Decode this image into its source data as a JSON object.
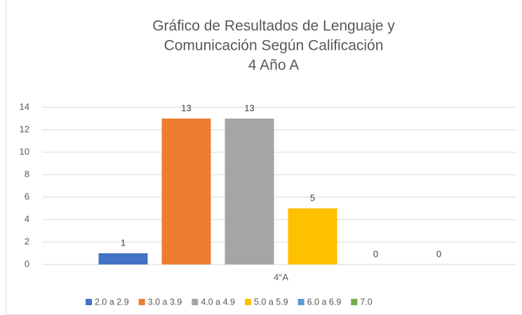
{
  "chart_data": {
    "type": "bar",
    "title": [
      "Gráfico de Resultados de Lenguaje y",
      "Comunicación Según Calificación",
      "4 Año A"
    ],
    "categories": [
      "4°A"
    ],
    "series": [
      {
        "name": "2.0 a 2.9",
        "color": "#4472c4",
        "values": [
          1
        ]
      },
      {
        "name": "3.0 a 3.9",
        "color": "#ed7d31",
        "values": [
          13
        ]
      },
      {
        "name": "4.0 a 4.9",
        "color": "#a5a5a5",
        "values": [
          13
        ]
      },
      {
        "name": "5.0 a 5.9",
        "color": "#ffc000",
        "values": [
          5
        ]
      },
      {
        "name": "6.0 a 6.9",
        "color": "#5b9bd5",
        "values": [
          0
        ]
      },
      {
        "name": "7.0",
        "color": "#70ad47",
        "values": [
          0
        ]
      }
    ],
    "ylim": [
      0,
      14
    ],
    "yticks": [
      0,
      2,
      4,
      6,
      8,
      10,
      12,
      14
    ],
    "grid": true,
    "legend": "bottom"
  }
}
